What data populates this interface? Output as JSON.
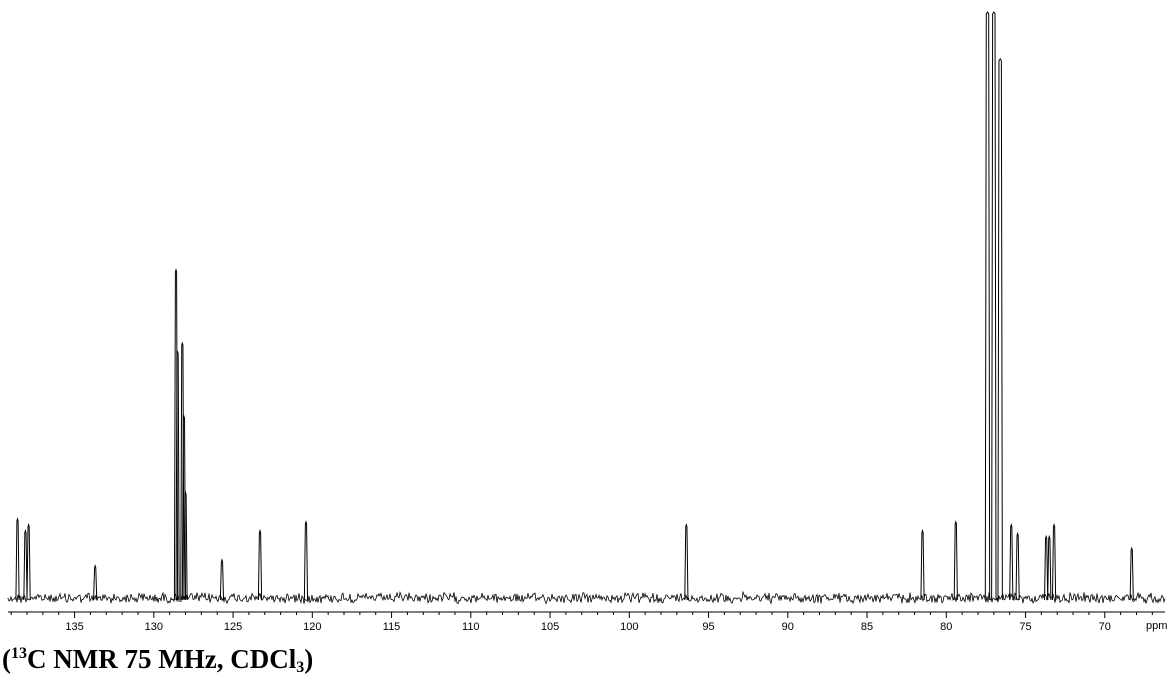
{
  "chart_data": {
    "type": "line",
    "xlabel": "ppm",
    "xlim": [
      139.2,
      66.2
    ],
    "x_reversed": true,
    "ylim": [
      0,
      100
    ],
    "x_ticks": [
      135,
      130,
      125,
      120,
      115,
      110,
      105,
      100,
      95,
      90,
      85,
      80,
      75,
      70
    ],
    "peaks": [
      {
        "ppm": 138.6,
        "height": 13.5
      },
      {
        "ppm": 138.1,
        "height": 11.5
      },
      {
        "ppm": 137.9,
        "height": 12.5
      },
      {
        "ppm": 133.7,
        "height": 5.5
      },
      {
        "ppm": 128.6,
        "height": 56.0
      },
      {
        "ppm": 128.5,
        "height": 42.0
      },
      {
        "ppm": 128.2,
        "height": 43.5
      },
      {
        "ppm": 128.1,
        "height": 31.0
      },
      {
        "ppm": 128.0,
        "height": 18.0
      },
      {
        "ppm": 125.7,
        "height": 6.5
      },
      {
        "ppm": 123.3,
        "height": 11.5
      },
      {
        "ppm": 120.4,
        "height": 13.0
      },
      {
        "ppm": 96.4,
        "height": 12.5
      },
      {
        "ppm": 81.5,
        "height": 11.5
      },
      {
        "ppm": 79.4,
        "height": 13.0
      },
      {
        "ppm": 77.4,
        "height": 100
      },
      {
        "ppm": 77.0,
        "height": 100
      },
      {
        "ppm": 76.6,
        "height": 92.0
      },
      {
        "ppm": 75.9,
        "height": 12.5
      },
      {
        "ppm": 75.5,
        "height": 11.0
      },
      {
        "ppm": 73.7,
        "height": 10.5
      },
      {
        "ppm": 73.5,
        "height": 10.5
      },
      {
        "ppm": 73.2,
        "height": 12.5
      },
      {
        "ppm": 68.3,
        "height": 8.5
      }
    ]
  },
  "caption": {
    "open": "(",
    "isotope": "13",
    "main": "C NMR 75 MHz, CDCl",
    "subscript": "3",
    "close": ")"
  }
}
